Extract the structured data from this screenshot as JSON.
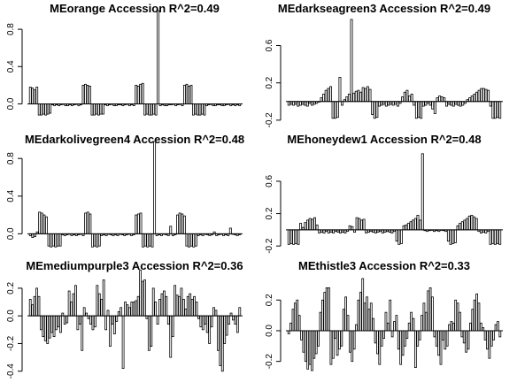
{
  "chart_data": [
    {
      "type": "bar",
      "title": "MEorange Accession R^2=0.49",
      "xlabel": "",
      "ylabel": "",
      "ylim": [
        -0.1,
        1.0
      ],
      "yticks": [
        0.0,
        0.4,
        0.8
      ],
      "ytick_labels": [
        "0.0",
        "0.4",
        "0.8"
      ],
      "values": [
        0.18,
        0.17,
        0.15,
        0.18,
        -0.12,
        -0.12,
        -0.11,
        -0.12,
        -0.11,
        -0.1,
        -0.01,
        -0.02,
        -0.01,
        -0.02,
        -0.01,
        0.0,
        -0.02,
        -0.02,
        -0.01,
        -0.02,
        -0.01,
        0.0,
        -0.02,
        -0.01,
        0.2,
        0.21,
        0.2,
        0.19,
        -0.12,
        -0.12,
        -0.11,
        -0.12,
        -0.11,
        -0.11,
        -0.01,
        -0.02,
        -0.01,
        0.0,
        -0.02,
        -0.02,
        -0.01,
        -0.01,
        -0.02,
        -0.01,
        0.0,
        -0.02,
        -0.01,
        -0.02,
        0.2,
        0.19,
        0.21,
        0.22,
        -0.12,
        -0.11,
        -0.12,
        -0.12,
        -0.11,
        -0.12,
        1.0,
        -0.02,
        -0.01,
        -0.02,
        -0.02,
        -0.01,
        -0.01,
        0.0,
        -0.02,
        -0.01,
        0.0,
        -0.02,
        0.2,
        0.21,
        0.19,
        0.2,
        -0.12,
        -0.11,
        -0.12,
        -0.12,
        -0.11,
        -0.12,
        -0.02,
        -0.01,
        0.0,
        -0.02,
        -0.02,
        -0.01,
        -0.01,
        -0.02,
        -0.02,
        -0.01,
        0.0,
        -0.02,
        -0.01,
        -0.02,
        -0.01,
        -0.02
      ]
    },
    {
      "type": "bar",
      "title": "MEdarkseagreen3 Accession R^2=0.49",
      "xlabel": "",
      "ylabel": "",
      "ylim": [
        -0.22,
        0.88
      ],
      "yticks": [
        -0.2,
        0.2,
        0.6
      ],
      "ytick_labels": [
        "-0.2",
        "0.2",
        "0.6"
      ],
      "values": [
        -0.04,
        -0.03,
        -0.04,
        -0.03,
        -0.05,
        -0.04,
        -0.03,
        -0.04,
        -0.05,
        -0.02,
        -0.04,
        -0.03,
        -0.02,
        0.0,
        0.04,
        0.08,
        0.12,
        0.14,
        0.16,
        -0.18,
        -0.18,
        -0.17,
        0.26,
        -0.04,
        0.02,
        0.05,
        0.08,
        0.88,
        0.09,
        0.11,
        0.12,
        0.1,
        0.15,
        0.14,
        0.16,
        0.13,
        -0.14,
        -0.18,
        -0.17,
        -0.05,
        -0.04,
        -0.03,
        -0.05,
        -0.04,
        -0.03,
        -0.04,
        -0.03,
        -0.05,
        -0.02,
        0.05,
        0.1,
        0.12,
        0.06,
        0.08,
        -0.04,
        -0.18,
        -0.17,
        -0.18,
        -0.05,
        -0.04,
        -0.02,
        -0.04,
        -0.08,
        -0.13,
        0.04,
        0.06,
        0.05,
        0.04,
        -0.05,
        -0.03,
        -0.04,
        -0.05,
        -0.03,
        -0.04,
        -0.05,
        -0.04,
        -0.02,
        0.02,
        0.04,
        0.06,
        0.08,
        0.1,
        0.12,
        0.14,
        0.14,
        0.13,
        0.12,
        -0.05,
        -0.18,
        -0.18,
        -0.17,
        -0.18
      ]
    },
    {
      "type": "bar",
      "title": "MEdarkolivegreen4 Accession R^2=0.48",
      "xlabel": "",
      "ylabel": "",
      "ylim": [
        -0.1,
        0.98
      ],
      "yticks": [
        0.0,
        0.4,
        0.8
      ],
      "ytick_labels": [
        "0.0",
        "0.4",
        "0.8"
      ],
      "values": [
        -0.02,
        -0.04,
        -0.03,
        0.02,
        0.23,
        0.22,
        0.2,
        0.18,
        -0.13,
        -0.14,
        -0.13,
        -0.14,
        -0.13,
        -0.13,
        -0.01,
        -0.02,
        -0.01,
        0.0,
        -0.02,
        -0.01,
        -0.02,
        -0.01,
        0.0,
        -0.02,
        0.22,
        0.23,
        0.21,
        -0.14,
        -0.13,
        -0.14,
        -0.13,
        -0.02,
        -0.01,
        -0.02,
        0.0,
        -0.01,
        -0.02,
        -0.01,
        -0.02,
        0.0,
        -0.01,
        -0.02,
        -0.01,
        0.0,
        -0.02,
        -0.01,
        0.2,
        0.21,
        0.22,
        -0.14,
        -0.13,
        -0.14,
        -0.13,
        -0.14,
        0.98,
        -0.02,
        -0.01,
        -0.02,
        0.0,
        -0.01,
        -0.02,
        0.08,
        -0.02,
        -0.01,
        0.2,
        0.22,
        0.21,
        0.19,
        -0.13,
        -0.14,
        -0.13,
        -0.14,
        -0.13,
        -0.02,
        -0.01,
        -0.02,
        0.0,
        -0.01,
        -0.02,
        -0.01,
        0.02,
        -0.02,
        -0.01,
        0.0,
        -0.02,
        -0.01,
        -0.02,
        0.06,
        0.0,
        -0.01,
        -0.02,
        -0.01
      ]
    },
    {
      "type": "bar",
      "title": "MEhoneydew1 Accession R^2=0.48",
      "xlabel": "",
      "ylabel": "",
      "ylim": [
        -0.22,
        0.96
      ],
      "yticks": [
        -0.2,
        0.2,
        0.6
      ],
      "ytick_labels": [
        "-0.2",
        "0.2",
        "0.6"
      ],
      "values": [
        -0.18,
        -0.17,
        -0.18,
        -0.17,
        -0.18,
        0.08,
        0.03,
        0.09,
        0.12,
        0.14,
        0.13,
        0.15,
        0.06,
        -0.04,
        -0.03,
        -0.04,
        -0.02,
        -0.04,
        -0.03,
        -0.04,
        -0.02,
        -0.03,
        -0.04,
        -0.03,
        -0.04,
        -0.02,
        0.05,
        0.04,
        -0.03,
        0.15,
        0.14,
        0.12,
        0.13,
        -0.04,
        -0.03,
        -0.02,
        -0.03,
        -0.04,
        -0.03,
        -0.02,
        -0.04,
        -0.03,
        -0.02,
        -0.03,
        -0.04,
        -0.02,
        -0.14,
        -0.18,
        -0.17,
        0.05,
        0.06,
        0.08,
        0.1,
        0.12,
        0.14,
        0.18,
        0.12,
        0.94,
        -0.01,
        -0.02,
        -0.01,
        0.0,
        -0.02,
        -0.01,
        -0.02,
        0.0,
        -0.01,
        -0.02,
        -0.14,
        -0.18,
        -0.17,
        -0.16,
        0.05,
        0.08,
        0.1,
        0.12,
        0.14,
        0.17,
        0.18,
        0.16,
        0.14,
        -0.02,
        -0.04,
        -0.03,
        -0.04,
        -0.02,
        -0.18,
        -0.17,
        -0.18,
        -0.17,
        -0.18
      ]
    },
    {
      "type": "bar",
      "title": "MEmediumpurple3 Accession R^2=0.36",
      "xlabel": "",
      "ylabel": "",
      "ylim": [
        -0.44,
        0.34
      ],
      "yticks": [
        -0.4,
        -0.2,
        0.0,
        0.2
      ],
      "ytick_labels": [
        "-0.4",
        "-0.2",
        "0.0",
        "0.2"
      ],
      "values": [
        0.12,
        0.08,
        0.14,
        0.2,
        0.14,
        -0.1,
        -0.15,
        -0.18,
        -0.2,
        -0.16,
        -0.12,
        -0.15,
        -0.1,
        -0.08,
        -0.12,
        0.02,
        -0.06,
        -0.05,
        0.18,
        0.1,
        0.16,
        0.22,
        -0.1,
        -0.06,
        -0.25,
        0.06,
        0.02,
        -0.02,
        -0.06,
        -0.1,
        -0.08,
        0.22,
        0.16,
        0.12,
        0.26,
        -0.1,
        0.04,
        -0.22,
        -0.06,
        -0.13,
        -0.04,
        0.03,
        0.06,
        -0.38,
        0.1,
        0.08,
        0.06,
        0.1,
        0.1,
        0.11,
        0.14,
        0.33,
        0.25,
        0.26,
        -0.02,
        -0.25,
        -0.22,
        0.2,
        0.1,
        -0.06,
        0.12,
        0.16,
        0.18,
        0.14,
        -0.06,
        -0.3,
        -0.15,
        0.22,
        0.15,
        0.14,
        0.2,
        0.12,
        0.05,
        0.14,
        0.16,
        0.12,
        0.14,
        0.1,
        -0.02,
        -0.08,
        -0.1,
        -0.06,
        -0.12,
        -0.2,
        -0.08,
        0.06,
        0.04,
        -0.25,
        -0.36,
        -0.4,
        -0.2,
        -0.14,
        -0.06,
        0.02,
        -0.03,
        -0.06,
        -0.12,
        0.06
      ]
    },
    {
      "type": "bar",
      "title": "MEthistle3 Accession R^2=0.33",
      "xlabel": "",
      "ylabel": "",
      "ylim": [
        -0.3,
        0.34
      ],
      "yticks": [
        -0.2,
        0.0,
        0.2
      ],
      "ytick_labels": [
        "-0.2",
        "0.0",
        "0.2"
      ],
      "values": [
        -0.02,
        0.05,
        0.14,
        0.18,
        0.2,
        0.1,
        -0.06,
        -0.14,
        -0.2,
        -0.25,
        -0.22,
        -0.26,
        -0.18,
        -0.15,
        -0.1,
        0.12,
        0.2,
        0.25,
        0.28,
        0.28,
        -0.22,
        -0.18,
        -0.05,
        -0.16,
        -0.12,
        -0.1,
        0.14,
        0.22,
        0.1,
        -0.14,
        -0.2,
        -0.12,
        0.04,
        0.2,
        0.25,
        0.34,
        0.18,
        0.22,
        0.14,
        0.18,
        0.08,
        -0.08,
        -0.15,
        -0.22,
        -0.1,
        -0.05,
        0.12,
        0.05,
        0.2,
        -0.04,
        0.06,
        0.1,
        -0.12,
        -0.22,
        -0.16,
        -0.1,
        -0.05,
        0.05,
        0.12,
        0.08,
        -0.24,
        -0.1,
        -0.06,
        0.1,
        0.18,
        0.12,
        0.26,
        0.28,
        0.22,
        -0.04,
        -0.1,
        -0.16,
        -0.22,
        -0.06,
        -0.12,
        -0.1,
        0.04,
        0.06,
        0.05,
        0.2,
        0.18,
        0.12,
        -0.04,
        -0.08,
        -0.14,
        -0.12,
        0.05,
        0.14,
        0.2,
        0.24,
        0.18,
        0.05,
        0.02,
        -0.06,
        -0.12,
        -0.18,
        -0.1,
        -0.06,
        0.04,
        0.06,
        -0.04
      ]
    }
  ]
}
